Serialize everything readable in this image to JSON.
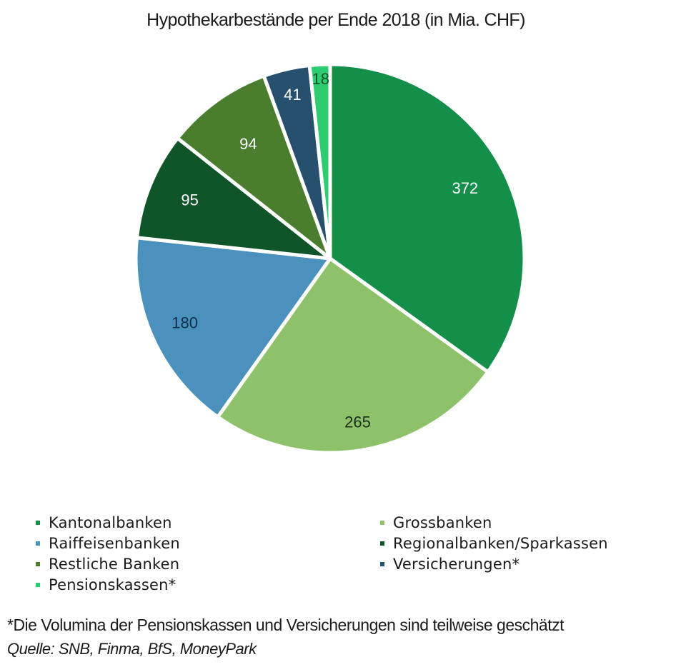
{
  "chart_data": {
    "type": "pie",
    "title": "Hypothekarbestände per Ende 2018 (in Mia. CHF)",
    "unit": "Mia. CHF",
    "start_angle": "12 o'clock, clockwise",
    "categories": [
      "Kantonalbanken",
      "Grossbanken",
      "Raiffeisenbanken",
      "Regionalbanken/Sparkassen",
      "Restliche Banken",
      "Versicherungen*",
      "Pensionskassen*"
    ],
    "values": [
      372,
      265,
      180,
      95,
      94,
      41,
      18
    ],
    "colors": [
      "#148f4a",
      "#8ec26a",
      "#4a91bd",
      "#0f5529",
      "#4a7d2e",
      "#27506e",
      "#2ecc71"
    ],
    "label_colors": [
      "#ffffff",
      "#1a2e1a",
      "#0f2d4a",
      "#ffffff",
      "#ffffff",
      "#ffffff",
      "#0f5529"
    ],
    "legend": {
      "position": "bottom",
      "columns": 2,
      "entries": [
        {
          "label": "Kantonalbanken",
          "color": "#148f4a"
        },
        {
          "label": "Grossbanken",
          "color": "#8ec26a"
        },
        {
          "label": "Raiffeisenbanken",
          "color": "#4a91bd"
        },
        {
          "label": "Regionalbanken/Sparkassen",
          "color": "#0f5529"
        },
        {
          "label": "Restliche Banken",
          "color": "#4a7d2e"
        },
        {
          "label": "Versicherungen*",
          "color": "#27506e"
        },
        {
          "label": "Pensionskassen*",
          "color": "#2ecc71"
        }
      ]
    },
    "footnote": "*Die Volumina der Pensionskassen und Versicherungen sind teilweise geschätzt",
    "source": "Quelle: SNB, Finma, BfS, MoneyPark"
  }
}
